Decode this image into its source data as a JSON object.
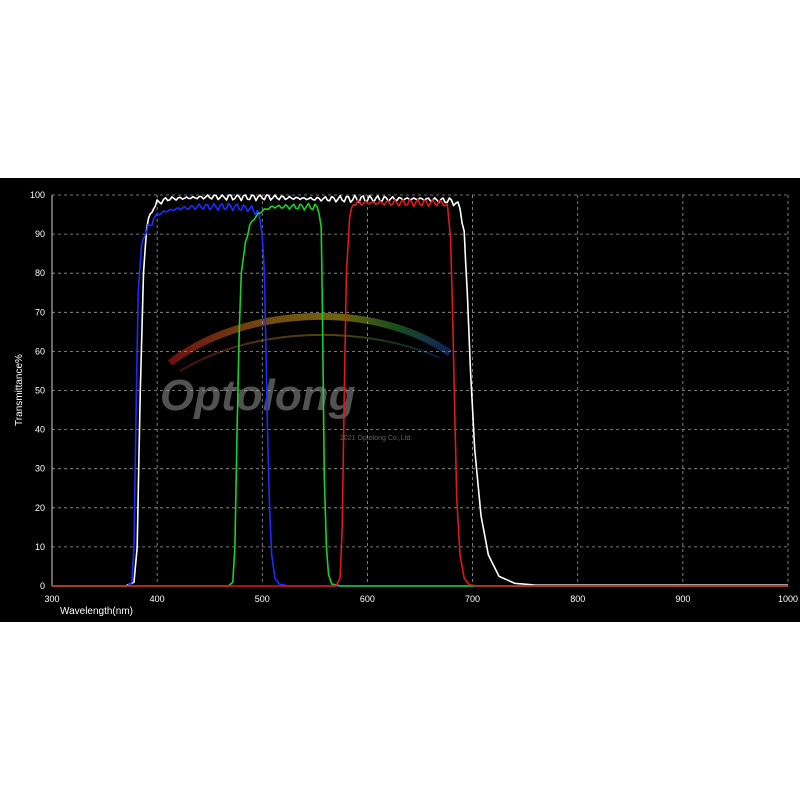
{
  "chart_data": {
    "type": "line",
    "title": "",
    "xlabel": "Wavelength(nm)",
    "ylabel": "Transmittance%",
    "xlim": [
      300,
      1000
    ],
    "ylim": [
      0,
      100
    ],
    "xticks": [
      300,
      400,
      500,
      600,
      700,
      800,
      900,
      1000
    ],
    "yticks": [
      0,
      10,
      20,
      30,
      40,
      50,
      60,
      70,
      80,
      90,
      100
    ],
    "grid": true,
    "series": [
      {
        "color": "#ffffff",
        "points": [
          [
            300,
            0
          ],
          [
            370,
            0
          ],
          [
            378,
            1
          ],
          [
            381,
            10
          ],
          [
            384,
            50
          ],
          [
            387,
            80
          ],
          [
            390,
            92
          ],
          [
            395,
            96
          ],
          [
            400,
            98
          ],
          [
            410,
            99
          ],
          [
            450,
            99.5
          ],
          [
            500,
            99.5
          ],
          [
            550,
            99
          ],
          [
            600,
            99
          ],
          [
            650,
            99
          ],
          [
            680,
            98.5
          ],
          [
            688,
            97
          ],
          [
            692,
            90
          ],
          [
            695,
            75
          ],
          [
            698,
            55
          ],
          [
            702,
            35
          ],
          [
            708,
            18
          ],
          [
            715,
            8
          ],
          [
            725,
            2.5
          ],
          [
            740,
            0.7
          ],
          [
            760,
            0.2
          ],
          [
            1000,
            0.2
          ]
        ]
      },
      {
        "color": "#1a2cff",
        "points": [
          [
            300,
            0
          ],
          [
            372,
            0
          ],
          [
            376,
            1
          ],
          [
            378,
            10
          ],
          [
            380,
            45
          ],
          [
            382,
            75
          ],
          [
            385,
            87
          ],
          [
            388,
            90
          ],
          [
            395,
            93
          ],
          [
            400,
            95
          ],
          [
            410,
            96
          ],
          [
            420,
            96.5
          ],
          [
            440,
            97
          ],
          [
            470,
            97
          ],
          [
            490,
            96.5
          ],
          [
            497,
            95
          ],
          [
            500,
            90
          ],
          [
            502,
            80
          ],
          [
            503.5,
            60
          ],
          [
            505,
            40
          ],
          [
            507,
            20
          ],
          [
            509,
            8
          ],
          [
            512,
            2
          ],
          [
            516,
            0.5
          ],
          [
            525,
            0
          ],
          [
            1000,
            0
          ]
        ]
      },
      {
        "color": "#19d12a",
        "points": [
          [
            300,
            0
          ],
          [
            468,
            0
          ],
          [
            472,
            1
          ],
          [
            474,
            10
          ],
          [
            476,
            40
          ],
          [
            478,
            65
          ],
          [
            480,
            80
          ],
          [
            484,
            88
          ],
          [
            488,
            92
          ],
          [
            492,
            94
          ],
          [
            496,
            95
          ],
          [
            500,
            96
          ],
          [
            510,
            97
          ],
          [
            530,
            97
          ],
          [
            550,
            97
          ],
          [
            554,
            96
          ],
          [
            556,
            92
          ],
          [
            557,
            75
          ],
          [
            558,
            50
          ],
          [
            559,
            28
          ],
          [
            561,
            10
          ],
          [
            563,
            3
          ],
          [
            566,
            0.5
          ],
          [
            575,
            0
          ],
          [
            1000,
            0
          ]
        ]
      },
      {
        "color": "#e01818",
        "points": [
          [
            300,
            0
          ],
          [
            570,
            0
          ],
          [
            574,
            2
          ],
          [
            576,
            15
          ],
          [
            578,
            50
          ],
          [
            580,
            80
          ],
          [
            583,
            94
          ],
          [
            587,
            98
          ],
          [
            600,
            98
          ],
          [
            640,
            98
          ],
          [
            672,
            98
          ],
          [
            676,
            97
          ],
          [
            679,
            90
          ],
          [
            681,
            70
          ],
          [
            683,
            45
          ],
          [
            685,
            22
          ],
          [
            688,
            8
          ],
          [
            692,
            2
          ],
          [
            697,
            0.3
          ],
          [
            705,
            0
          ],
          [
            1000,
            0
          ]
        ]
      }
    ],
    "watermark": "Optolong",
    "watermark_copyright": "2021 Optolong Co.,Ltd."
  }
}
